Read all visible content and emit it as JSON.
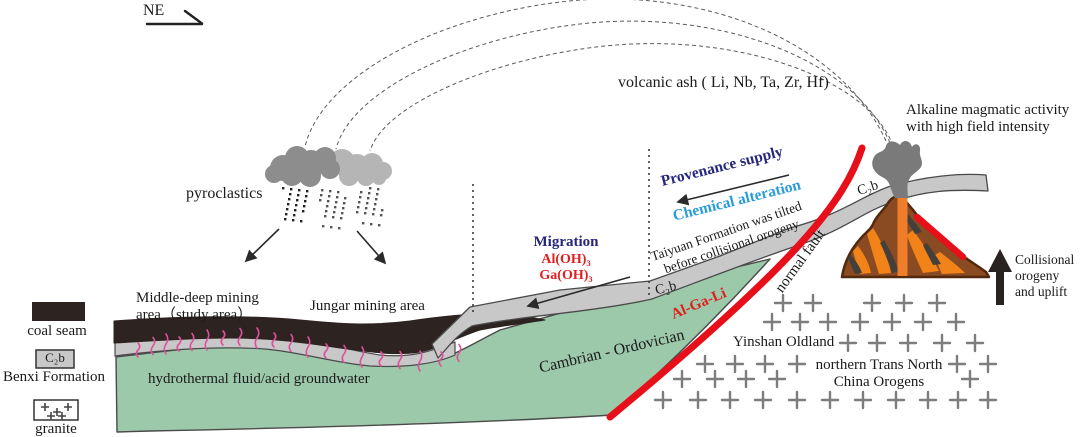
{
  "compass": {
    "label": "NE"
  },
  "labels": {
    "volcanic_ash": "volcanic ash ( Li, Nb, Ta, Zr, Hf)",
    "alkaline_line1": "Alkaline magmatic activity",
    "alkaline_line2": "with high field intensity",
    "pyroclastics": "pyroclastics",
    "provenance": "Provenance supply",
    "chemical": "Chemical alteration",
    "migration": "Migration",
    "al_oh": "Al(OH)₃",
    "ga_oh": "Ga(OH)₃",
    "taiyuan_line1": "Taiyuan Formation was tilted",
    "taiyuan_line2": "before collisional orogeny",
    "normal_fault": "normal fault",
    "c2b_band_left": "C₂b",
    "c2b_band_right": "C₂b",
    "middle_deep_line1": "Middle-deep mining",
    "middle_deep_line2": "area（study area）",
    "jungar": "Jungar mining area",
    "hydrothermal": "hydrothermal fluid/acid groundwater",
    "cambrian": "Cambrian - Ordovician",
    "al_ga_li": "Al-Ga-Li",
    "yinshan": "Yinshan Oldland",
    "trans_north_line1": "northern Trans North",
    "trans_north_line2": "China Orogens",
    "collisional_line1": "Collisional",
    "collisional_line2": "orogeny",
    "collisional_line3": "and uplift"
  },
  "legend": {
    "coal_seam": "coal seam",
    "c2b": "C₂b",
    "benxi": "Benxi Formation",
    "granite": "granite"
  },
  "colors": {
    "navy": "#26267d",
    "cyan": "#2a9cd8",
    "redtext": "#e01f1f",
    "fault_red": "#e60f1a",
    "pink": "#df4f9a",
    "green_layer": "#9dc9ab",
    "gray_band": "#c8c8c8",
    "coal_black": "#2d2321",
    "volcano_brown": "#8a4a22",
    "volcano_orange": "#f28318",
    "plume_gray": "#7a7a7a",
    "cloud_dark": "#8d8d8d",
    "cloud_light": "#b5b5b5",
    "granite_plus": "#7d7d7d"
  }
}
